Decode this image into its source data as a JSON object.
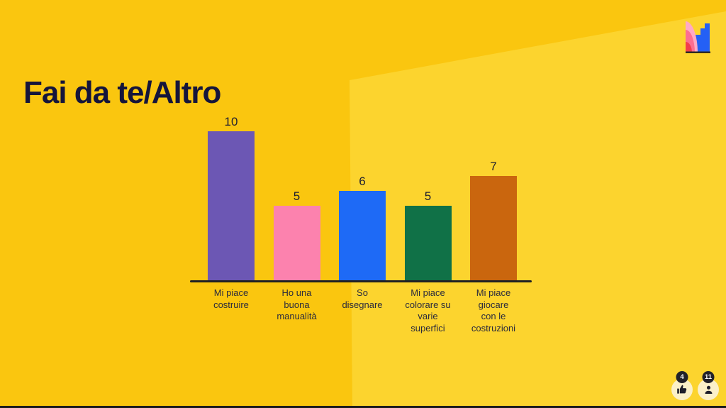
{
  "slide": {
    "title": "Fai da te/Altro",
    "background": {
      "base_color": "#FAC60F",
      "wedge_color": "#FCD42E"
    }
  },
  "chart_data": {
    "type": "bar",
    "title": "Fai da te/Altro",
    "categories": [
      "Mi piace costruire",
      "Ho una buona manualità",
      "So disegnare",
      "Mi piace colorare su varie superfici",
      "Mi piace giocare con le costruzioni"
    ],
    "values": [
      10,
      5,
      6,
      5,
      7
    ],
    "value_labels": [
      "10",
      "5",
      "6",
      "5",
      "7"
    ],
    "label_lines": [
      [
        "Mi piace",
        "costruire"
      ],
      [
        "Ho una",
        "buona",
        "manualità"
      ],
      [
        "So",
        "disegnare"
      ],
      [
        "Mi piace",
        "colorare su",
        "varie",
        "superfici"
      ],
      [
        "Mi piace",
        "giocare",
        "con le",
        "costruzioni"
      ]
    ],
    "bar_colors": [
      "#6C57B4",
      "#FC82AE",
      "#1E6AF6",
      "#107147",
      "#CA660E"
    ],
    "xlabel": "",
    "ylabel": "",
    "ylim": [
      0,
      10
    ],
    "grid": false,
    "legend": "none",
    "axis_color": "#1F2024"
  },
  "logo": {
    "name": "mentimeter-logomark",
    "colors": {
      "light_pink": "#FFA9C5",
      "pink": "#FC6E92",
      "red": "#F23D4C",
      "blue": "#2460F5",
      "base": "#2E2A24"
    }
  },
  "reactions": {
    "thumbs_up_count": "4",
    "participants_count": "11"
  }
}
